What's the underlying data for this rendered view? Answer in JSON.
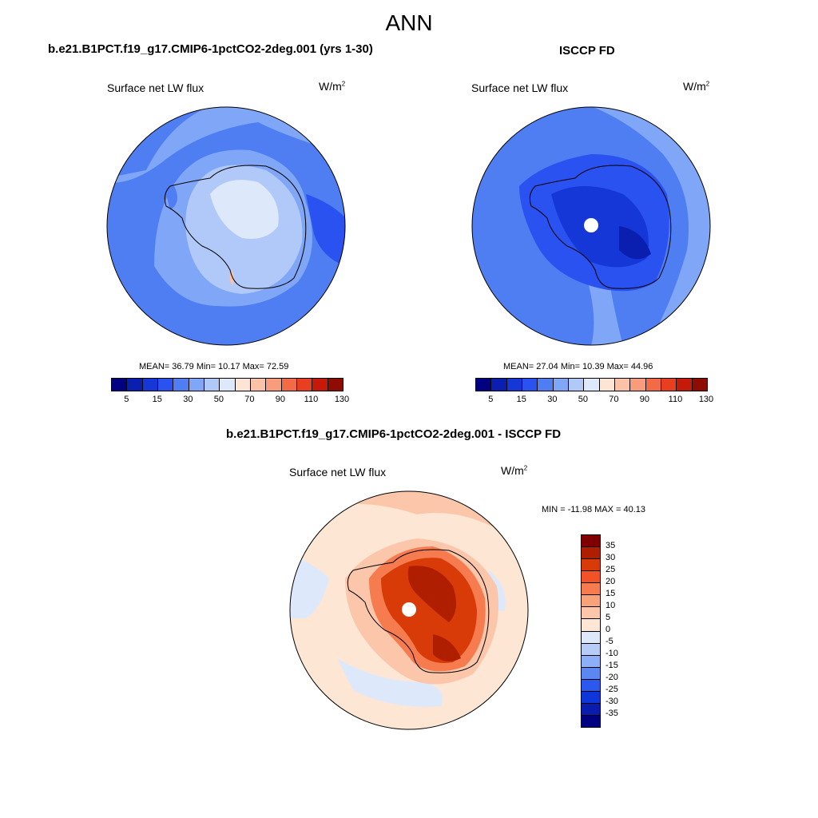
{
  "figure": {
    "title": "ANN"
  },
  "panels": {
    "model": {
      "title": "b.e21.B1PCT.f19_g17.CMIP6-1pctCO2-2deg.001 (yrs 1-30)",
      "variable": "Surface net LW flux",
      "units_base": "W/m",
      "units_exp": "2",
      "stats": "MEAN=  36.79  Min=  10.17  Max=  72.59"
    },
    "obs": {
      "title": "ISCCP FD",
      "variable": "Surface net LW flux",
      "units_base": "W/m",
      "units_exp": "2",
      "stats": "MEAN=  27.04  Min=  10.39  Max=  44.96"
    },
    "diff": {
      "title": "b.e21.B1PCT.f19_g17.CMIP6-1pctCO2-2deg.001 - ISCCP FD",
      "variable": "Surface net LW flux",
      "units_base": "W/m",
      "units_exp": "2",
      "stats": "MIN = -11.98 MAX =  40.13"
    }
  },
  "colorbars": {
    "absolute": {
      "colors": [
        "#000080",
        "#0a1fb0",
        "#1537d8",
        "#2a52f0",
        "#4f7ef2",
        "#7fa6f7",
        "#b0c9f8",
        "#dde9fb",
        "#fde4d4",
        "#fbc2a8",
        "#f89c7c",
        "#f26b45",
        "#e83f20",
        "#c51a0a",
        "#8e0c00"
      ],
      "ticks": [
        "5",
        "15",
        "30",
        "50",
        "70",
        "90",
        "110",
        "130"
      ]
    },
    "difference": {
      "colors": [
        "#800000",
        "#b01e00",
        "#d83a08",
        "#f25225",
        "#f67b4f",
        "#f8a27a",
        "#fbc6aa",
        "#fde6d4",
        "#dde9fb",
        "#b7cdf8",
        "#8bb0f7",
        "#5b87f1",
        "#2b59f0",
        "#0f36d8",
        "#0a1cae",
        "#000080"
      ],
      "ticks": [
        "35",
        "30",
        "25",
        "20",
        "15",
        "10",
        "5",
        "0",
        "-5",
        "-10",
        "-15",
        "-20",
        "-25",
        "-30",
        "-35"
      ]
    }
  }
}
